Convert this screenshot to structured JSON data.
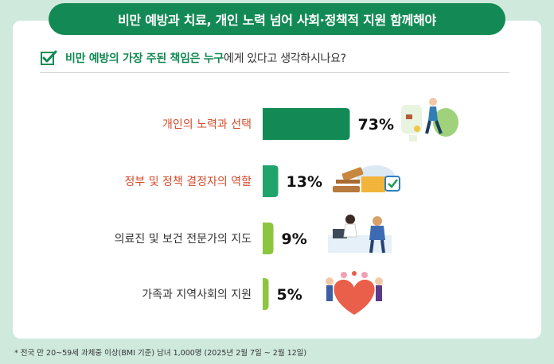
{
  "banner": {
    "title": "비만 예방과 치료, 개인 노력 넘어 사회·정책적 지원 함께해야"
  },
  "question": {
    "part1": "비만 예방의 가장 주된 책임은 누구",
    "part2": "에게 있다고 생각하시나요?"
  },
  "chart_data": {
    "type": "bar",
    "orientation": "horizontal",
    "categories": [
      "개인의 노력과 선택",
      "정부 및 정책 결정자의 역할",
      "의료진 및 보건 전문가의 지도",
      "가족과 지역사회의 지원"
    ],
    "values": [
      73,
      13,
      9,
      5
    ],
    "value_labels": [
      "73%",
      "13%",
      "9%",
      "5%"
    ],
    "unit": "%",
    "xlim": [
      0,
      100
    ],
    "grid": false,
    "legend": "none",
    "colors": [
      "#138a55",
      "#20a46b",
      "#8cc63f",
      "#8cc63f"
    ],
    "label_colors": [
      "#d34b2b",
      "#d34b2b",
      "#333333",
      "#333333"
    ]
  },
  "footnote": "* 전국 만 20~59세 과체중 이상(BMI 기준) 남녀 1,000명 (2025년 2월 7일 ~ 2월 12일)",
  "icons": [
    "checkbox-check-icon",
    "thumbs-up-fitness-icon",
    "gavel-policy-icon",
    "doctor-consult-icon",
    "family-heart-icon"
  ]
}
